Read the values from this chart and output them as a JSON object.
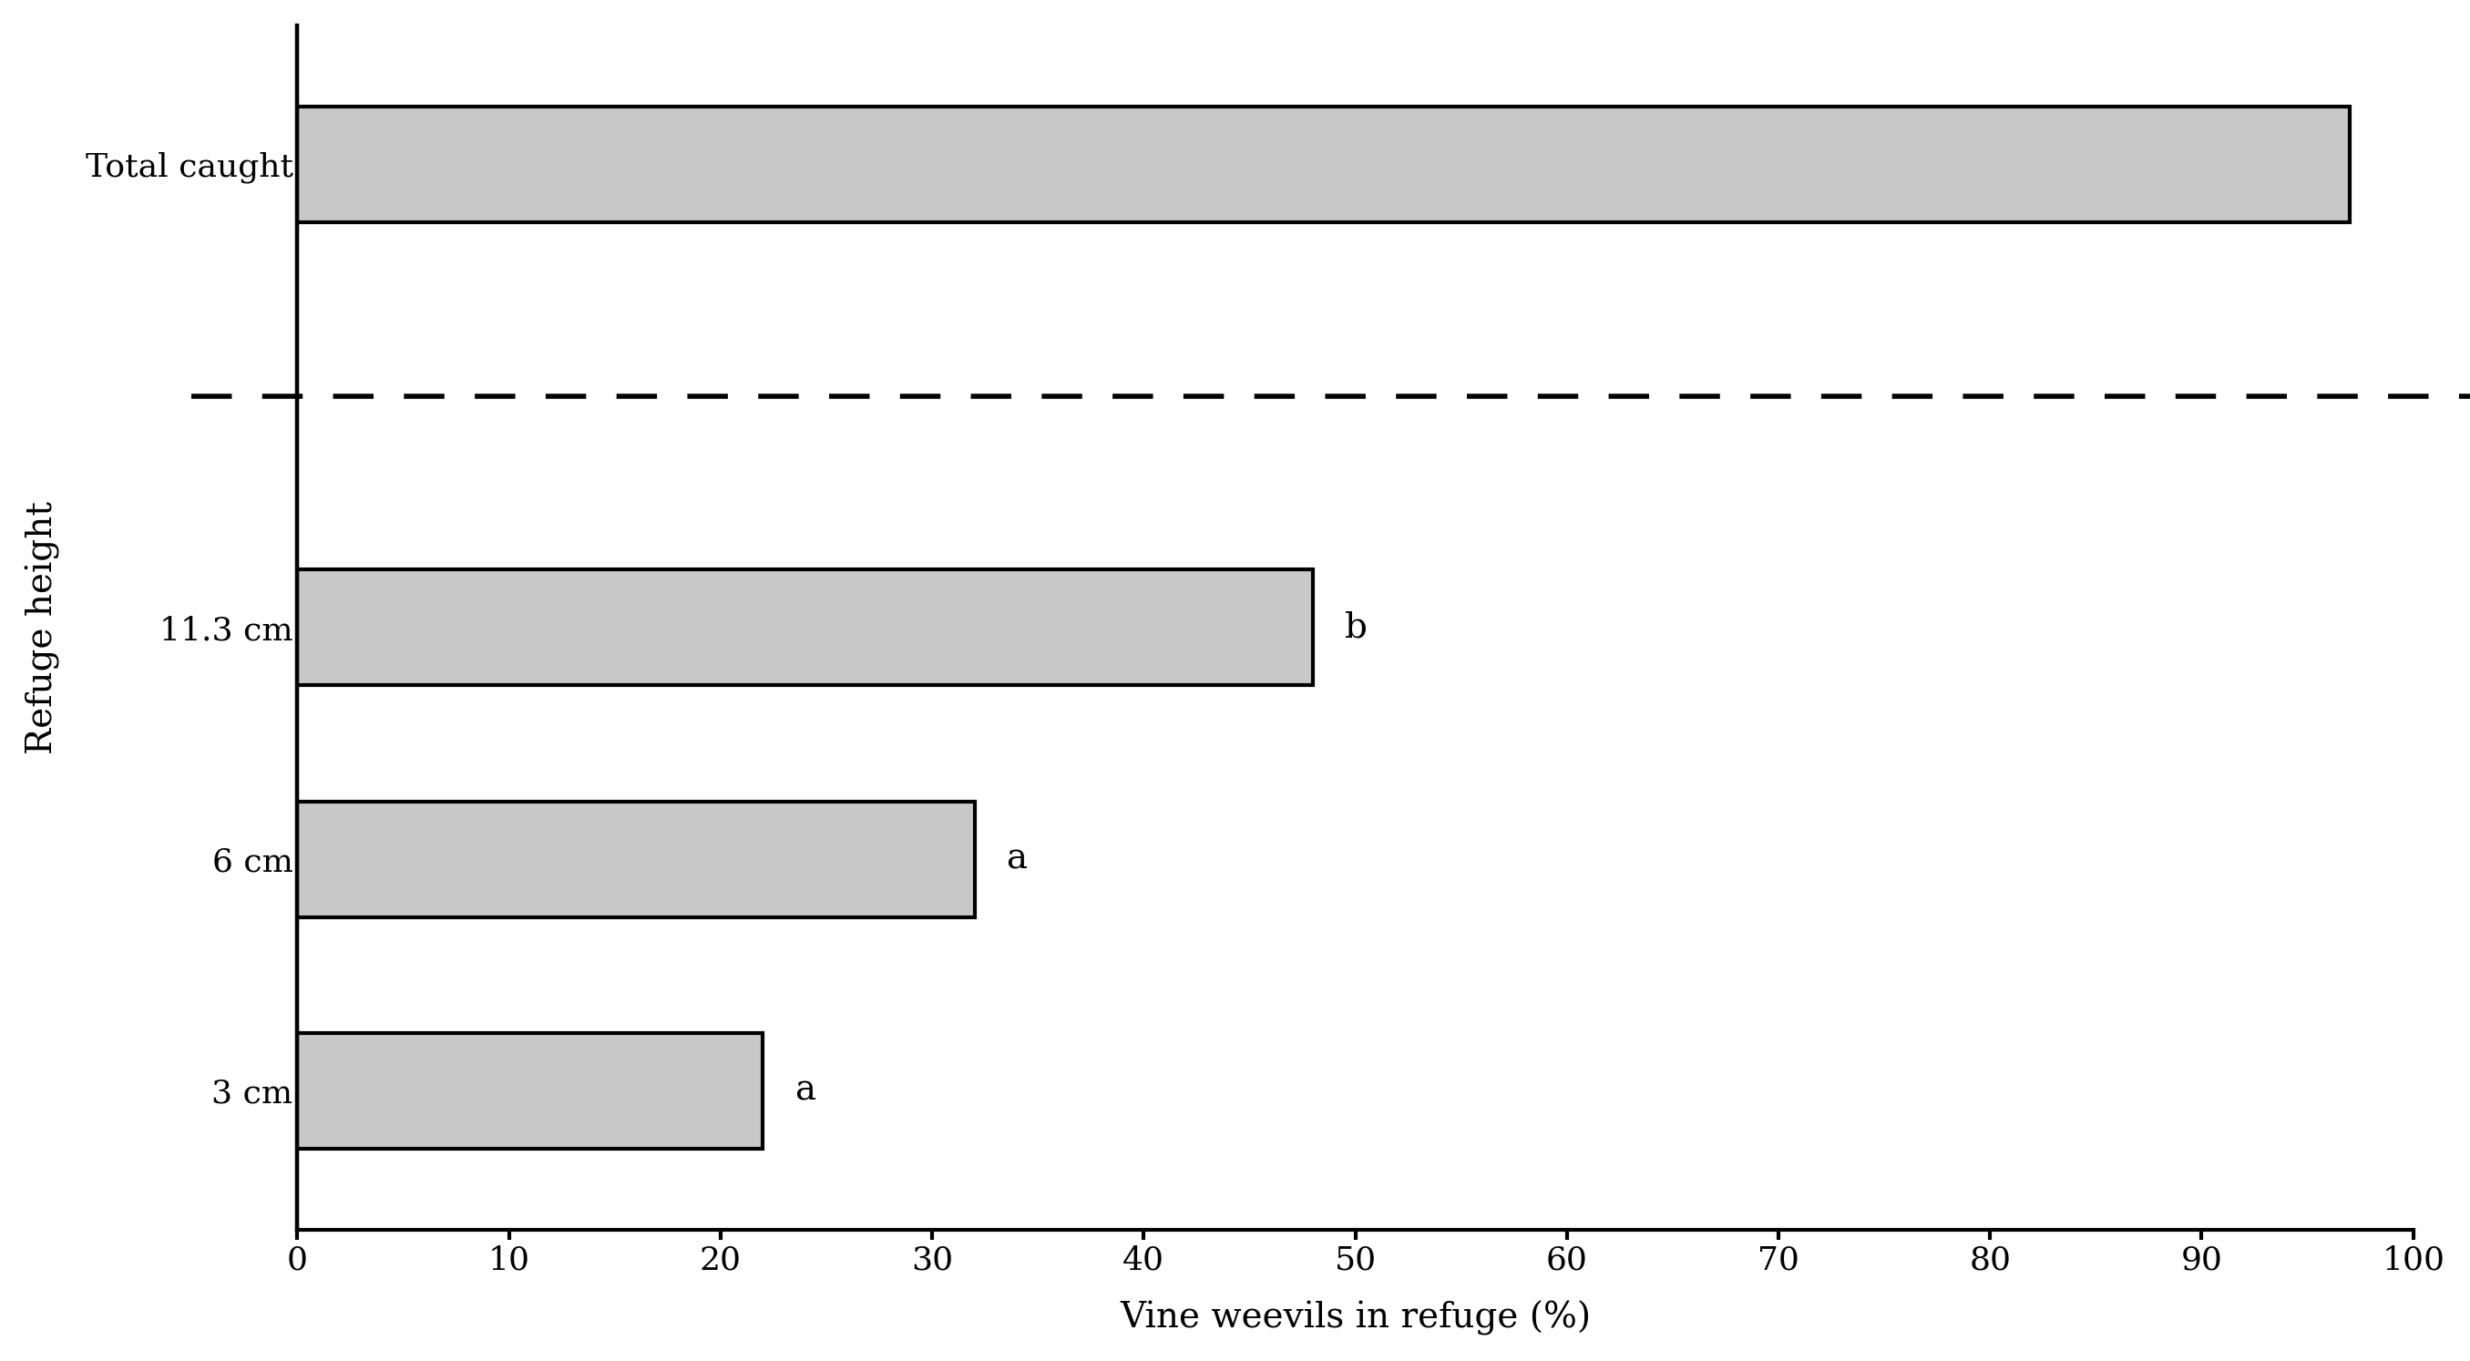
{
  "categories": [
    "3 cm",
    "6 cm",
    "11.3 cm",
    "Total caught"
  ],
  "values": [
    22,
    32,
    48,
    97
  ],
  "bar_color": "#c8c8c8",
  "bar_edgecolor": "#000000",
  "labels": [
    "a",
    "a",
    "b",
    ""
  ],
  "xlabel": "Vine weevils in refuge (%)",
  "ylabel": "Refuge height",
  "xlim": [
    0,
    100
  ],
  "xticks": [
    0,
    10,
    20,
    30,
    40,
    50,
    60,
    70,
    80,
    90,
    100
  ],
  "bar_height": 0.5,
  "label_fontsize": 28,
  "tick_fontsize": 26,
  "annotation_fontsize": 28,
  "ylabel_fontsize": 28,
  "background_color": "#ffffff",
  "linewidth": 3.0,
  "dashed_linewidth": 4.0
}
